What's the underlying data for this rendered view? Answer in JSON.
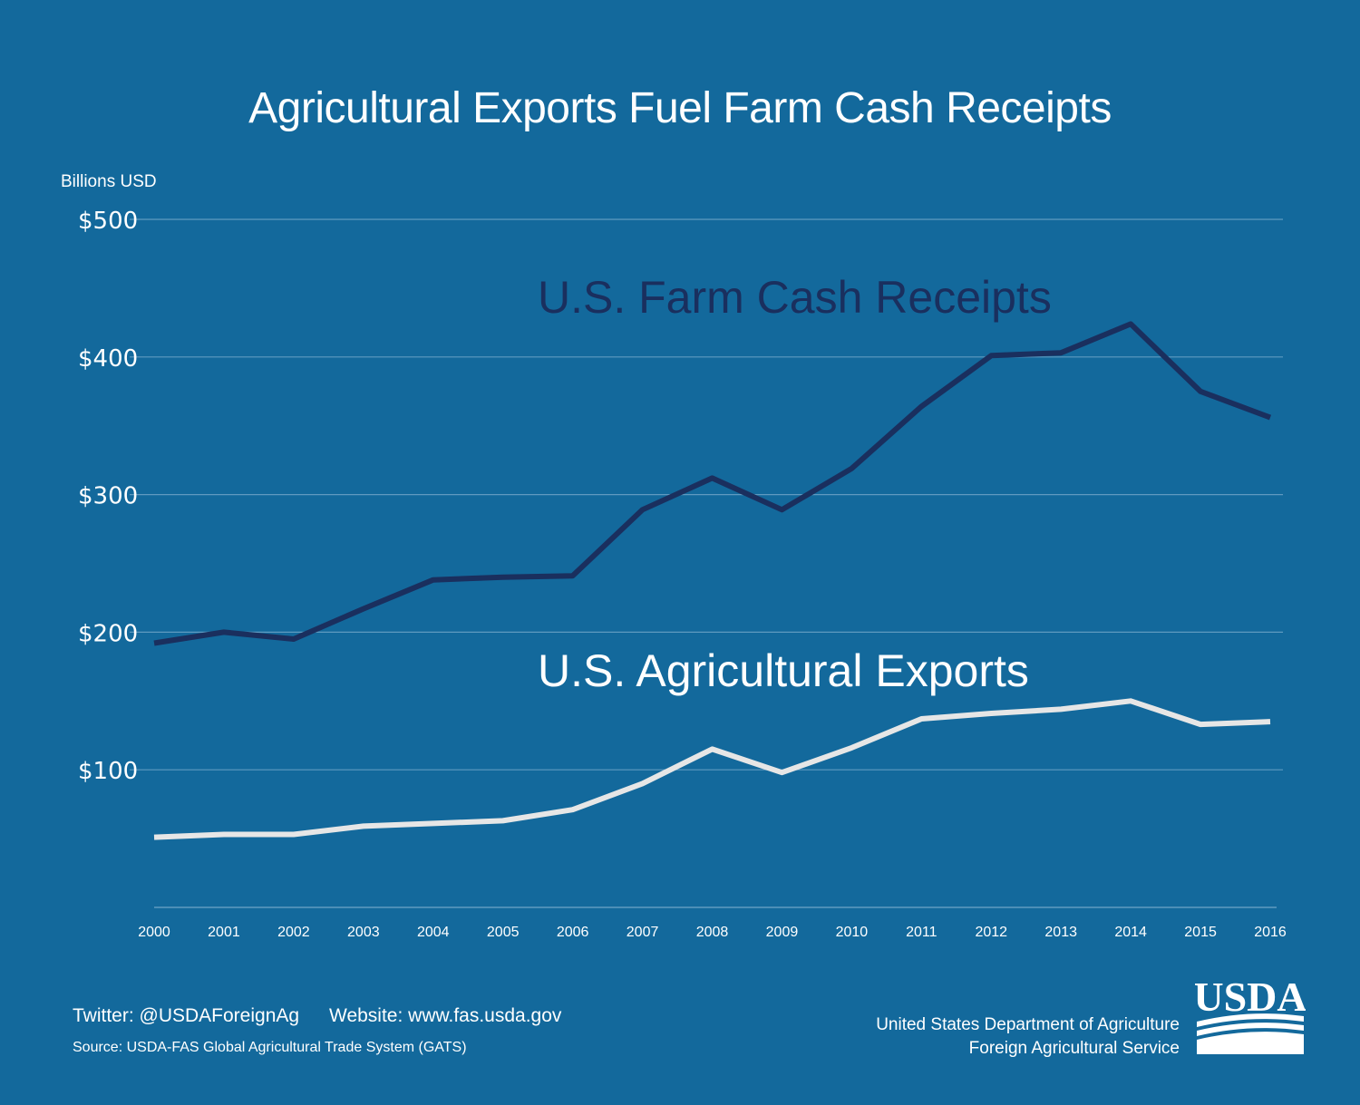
{
  "header": {
    "title": "Agricultural Exports Fuel Farm Cash Receipts"
  },
  "chart_data": {
    "type": "line",
    "title": "Agricultural Exports Fuel Farm Cash Receipts",
    "ylabel": "Billions USD",
    "xlabel": "",
    "ylim": [
      0,
      500
    ],
    "yticks": [
      100,
      200,
      300,
      400,
      500
    ],
    "ytick_labels": [
      "$100",
      "$200",
      "$300",
      "$400",
      "$500"
    ],
    "grid": true,
    "x": [
      "2000",
      "2001",
      "2002",
      "2003",
      "2004",
      "2005",
      "2006",
      "2007",
      "2008",
      "2009",
      "2010",
      "2011",
      "2012",
      "2013",
      "2014",
      "2015",
      "2016"
    ],
    "series": [
      {
        "name": "U.S. Farm Cash Receipts",
        "color": "#1a2f5e",
        "values": [
          192,
          200,
          195,
          217,
          238,
          240,
          241,
          289,
          312,
          289,
          319,
          364,
          401,
          403,
          424,
          375,
          356
        ]
      },
      {
        "name": "U.S. Agricultural Exports",
        "color": "#e6e6e6",
        "values": [
          51,
          53,
          53,
          59,
          61,
          63,
          71,
          90,
          115,
          98,
          116,
          137,
          141,
          144,
          150,
          133,
          135
        ]
      }
    ]
  },
  "footer": {
    "twitter": "Twitter: @USDAForeignAg",
    "website": "Website: www.fas.usda.gov",
    "source": "Source: USDA-FAS Global Agricultural Trade System (GATS)",
    "org_line1": "United States Department of Agriculture",
    "org_line2": "Foreign Agricultural Service",
    "logo_text": "USDA"
  },
  "colors": {
    "background": "#13699c",
    "dark_series": "#1a2f5e",
    "light_series": "#e6e6e6"
  }
}
